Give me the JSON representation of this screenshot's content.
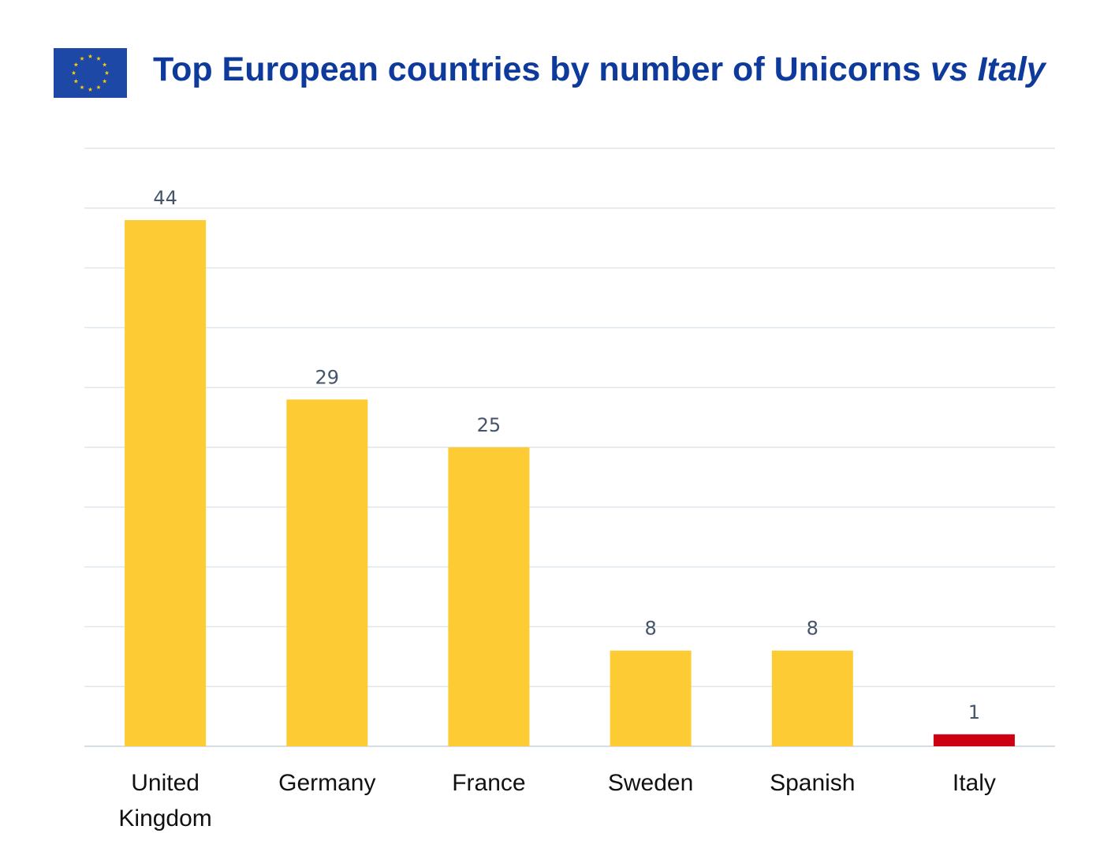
{
  "colors": {
    "title": "#0e3a9c",
    "flag_blue": "#1d48a6",
    "flag_star": "#ffcc00",
    "bar_default": "#fdcb34",
    "bar_highlight": "#cc0010",
    "gridline": "#dfe6ec",
    "baseline": "#d6dde4"
  },
  "header": {
    "flag_icon": "eu-flag-icon",
    "title_main": "Top European countries by number of Unicorns",
    "title_emphasis": "vs Italy"
  },
  "chart_data": {
    "type": "bar",
    "title": "Top European countries by number of Unicorns vs Italy",
    "categories": [
      "United Kingdom",
      "Germany",
      "France",
      "Sweden",
      "Spanish",
      "Italy"
    ],
    "category_lines": [
      [
        "United",
        "Kingdom"
      ],
      [
        "Germany"
      ],
      [
        "France"
      ],
      [
        "Sweden"
      ],
      [
        "Spanish"
      ],
      [
        "Italy"
      ]
    ],
    "values": [
      44,
      29,
      25,
      8,
      8,
      1
    ],
    "highlight": [
      "Italy"
    ],
    "ylim": [
      0,
      50
    ],
    "grid": true,
    "data_labels": true,
    "xlabel": "",
    "ylabel": ""
  }
}
